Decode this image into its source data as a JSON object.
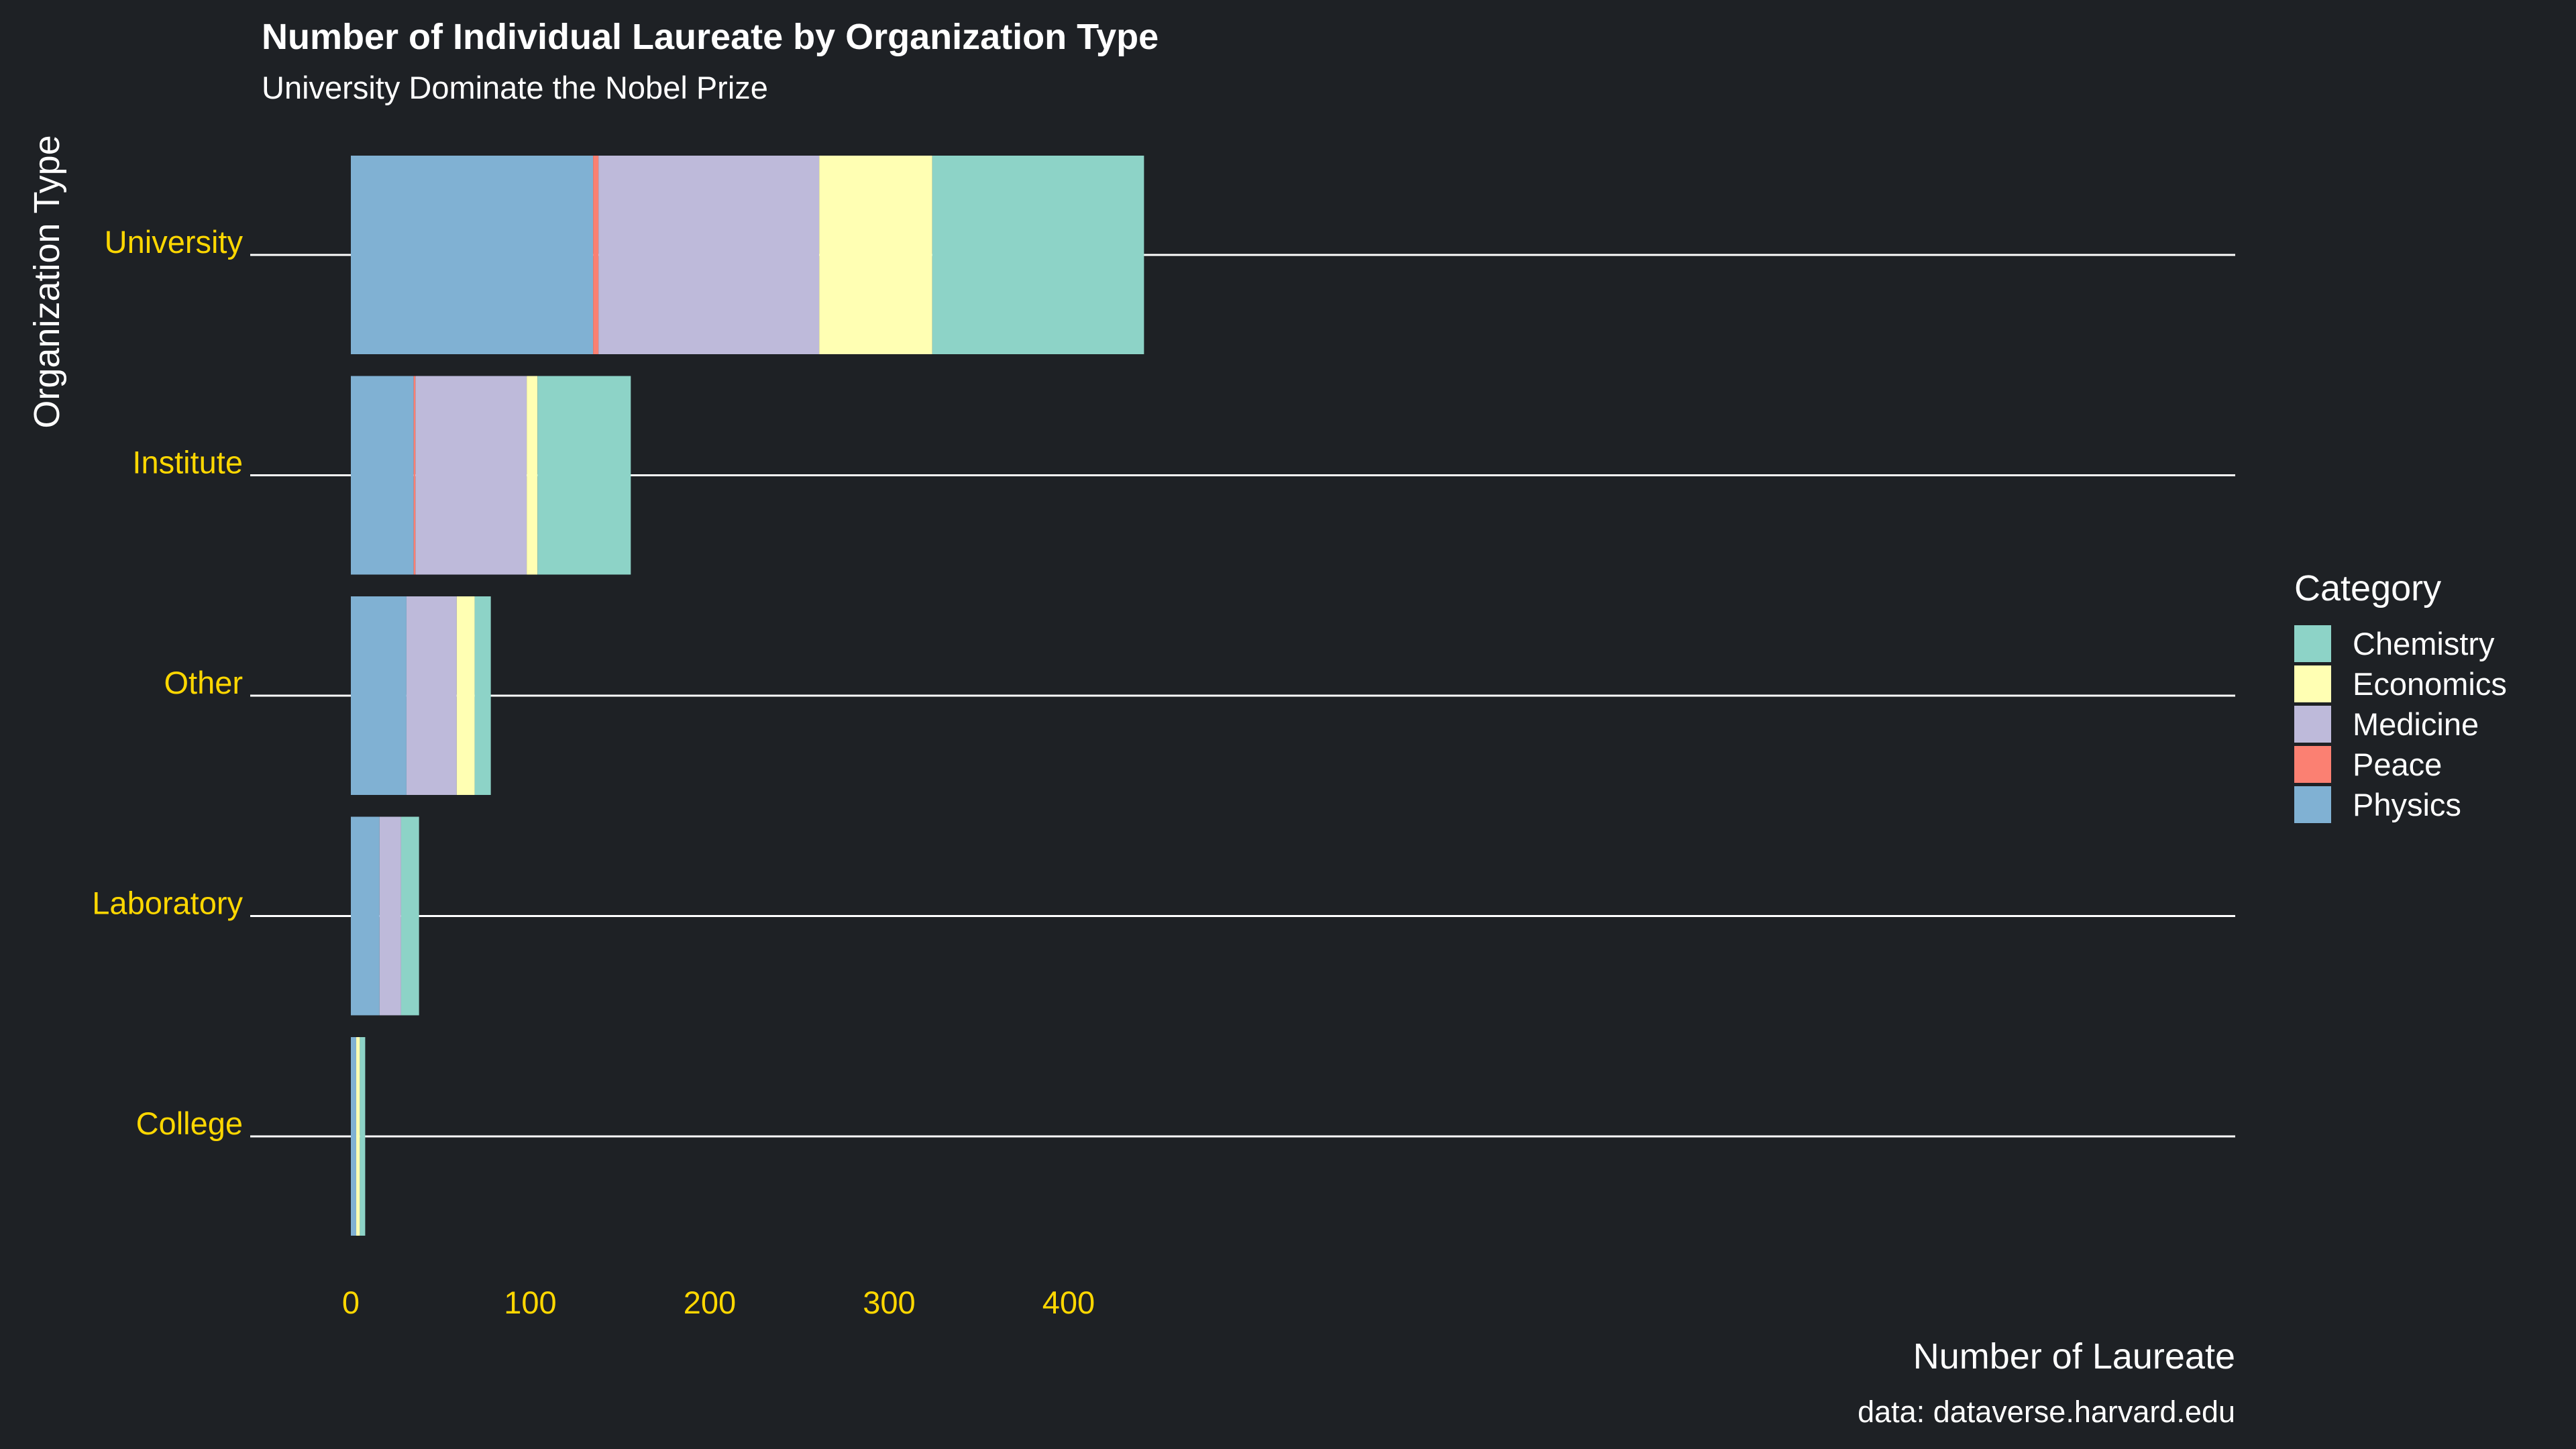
{
  "chart_data": {
    "type": "bar",
    "orientation": "horizontal",
    "stacked": true,
    "title": "Number of Individual Laureate by Organization Type",
    "subtitle": "University Dominate the Nobel Prize",
    "xlabel": "Number of Laureate",
    "ylabel": "Organization Type",
    "caption": "data: dataverse.harvard.edu",
    "categories": [
      "University",
      "Institute",
      "Other",
      "Laboratory",
      "College"
    ],
    "xlim": [
      -25,
      465
    ],
    "xticks": [
      0,
      100,
      200,
      300,
      400
    ],
    "grid": "horizontal lines at categories only",
    "legend": {
      "title": "Category",
      "position": "right",
      "entries": [
        "Chemistry",
        "Economics",
        "Medicine",
        "Peace",
        "Physics"
      ]
    },
    "series": [
      {
        "name": "Physics",
        "color": "#80b1d3",
        "values": [
          135,
          35,
          31,
          16,
          3
        ]
      },
      {
        "name": "Peace",
        "color": "#fb8072",
        "values": [
          3,
          1,
          0,
          0,
          0
        ]
      },
      {
        "name": "Medicine",
        "color": "#bebada",
        "values": [
          123,
          62,
          28,
          12,
          0
        ]
      },
      {
        "name": "Economics",
        "color": "#ffffb3",
        "values": [
          63,
          6,
          10,
          0,
          2
        ]
      },
      {
        "name": "Chemistry",
        "color": "#8dd3c7",
        "values": [
          118,
          52,
          9,
          10,
          3
        ]
      }
    ]
  },
  "colors": {
    "background": "#1e2125",
    "text": "#ffffff",
    "axis_text": "#ffd700",
    "gridline": "#ffffff"
  }
}
